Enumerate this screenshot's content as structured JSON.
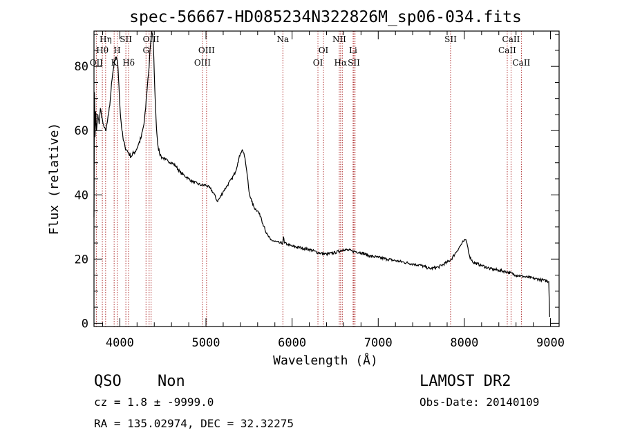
{
  "chart_data": {
    "type": "line",
    "title": "spec-56667-HD085234N322826M_sp06-034.fits",
    "xlabel": "Wavelength (Å)",
    "ylabel": "Flux (relative)",
    "xlim": [
      3700,
      9100
    ],
    "ylim": [
      -1,
      91
    ],
    "x_ticks": [
      4000,
      5000,
      6000,
      7000,
      8000,
      9000
    ],
    "y_ticks": [
      0,
      20,
      40,
      60,
      80
    ],
    "grid": false,
    "series": [
      {
        "x": [
          3700,
          3705,
          3712,
          3720,
          3730,
          3745,
          3760,
          3775,
          3790,
          3800,
          3810,
          3820,
          3835,
          3850,
          3870,
          3890,
          3910,
          3930,
          3945,
          3960,
          3970,
          3980,
          3990,
          4000,
          4010,
          4025,
          4040,
          4060,
          4080,
          4100,
          4130,
          4160,
          4190,
          4220,
          4250,
          4280,
          4300,
          4320,
          4340,
          4350,
          4360,
          4370,
          4380,
          4390,
          4400,
          4410,
          4420,
          4430,
          4445,
          4460,
          4480,
          4500,
          4530,
          4560,
          4600,
          4650,
          4700,
          4750,
          4800,
          4850,
          4900,
          4950,
          5000,
          5050,
          5100,
          5130,
          5160,
          5200,
          5250,
          5300,
          5340,
          5370,
          5400,
          5420,
          5440,
          5460,
          5480,
          5500,
          5530,
          5560,
          5600,
          5640,
          5660,
          5680,
          5700,
          5750,
          5800,
          5850,
          5890,
          5900,
          5910,
          5950,
          6000,
          6100,
          6200,
          6300,
          6400,
          6500,
          6600,
          6700,
          6800,
          6900,
          7000,
          7100,
          7200,
          7300,
          7400,
          7500,
          7600,
          7700,
          7800,
          7850,
          7900,
          7950,
          7990,
          8010,
          8030,
          8060,
          8100,
          8200,
          8300,
          8400,
          8500,
          8600,
          8700,
          8800,
          8900,
          8980,
          8990
        ],
        "y": [
          33,
          72,
          58,
          66,
          60,
          65,
          62,
          67,
          64,
          63,
          62,
          61,
          60,
          62,
          65,
          70,
          76,
          80,
          82,
          83,
          82,
          79,
          74,
          68,
          64,
          60,
          57,
          55,
          54,
          53,
          52,
          53,
          54,
          56,
          58,
          62,
          67,
          74,
          80,
          85,
          88,
          91,
          90,
          86,
          78,
          70,
          64,
          59,
          55,
          53,
          52,
          51.5,
          51,
          50.5,
          50,
          49,
          47,
          46,
          45,
          44,
          43.5,
          43,
          43,
          42,
          40,
          38,
          39,
          41,
          43,
          45,
          47,
          50,
          53,
          54,
          53,
          50,
          46,
          41,
          38,
          36,
          35,
          33,
          31,
          30,
          28,
          26,
          25.5,
          25,
          25,
          27,
          25,
          24.5,
          24,
          23.5,
          23,
          22,
          21.5,
          22,
          23,
          22.5,
          22,
          21,
          20.5,
          20,
          19.5,
          19,
          18.5,
          18,
          17,
          17.5,
          19,
          20,
          22,
          24,
          25.5,
          26,
          25,
          21,
          19,
          18,
          17,
          16.5,
          16,
          15,
          14.5,
          14,
          13.5,
          13,
          2
        ]
      }
    ],
    "lines": [
      {
        "label": "OII",
        "x": 3727,
        "row": 3
      },
      {
        "label": "Hθ",
        "x": 3797,
        "row": 2
      },
      {
        "label": "Hη",
        "x": 3835,
        "row": 1
      },
      {
        "label": "K",
        "x": 3934,
        "row": 3
      },
      {
        "label": "H",
        "x": 3969,
        "row": 2
      },
      {
        "label": "SII",
        "x": 4070,
        "row": 1
      },
      {
        "label": "Hδ",
        "x": 4102,
        "row": 3
      },
      {
        "label": "G",
        "x": 4304,
        "row": 2
      },
      {
        "label": "OIII",
        "x": 4363,
        "row": 1
      },
      {
        "label": "",
        "x": 4340,
        "row": 0
      },
      {
        "label": "OIII",
        "x": 4959,
        "row": 3
      },
      {
        "label": "OIII",
        "x": 5007,
        "row": 2
      },
      {
        "label": "Na",
        "x": 5893,
        "row": 1
      },
      {
        "label": "OI",
        "x": 6300,
        "row": 3
      },
      {
        "label": "OI",
        "x": 6364,
        "row": 2
      },
      {
        "label": "NII",
        "x": 6548,
        "row": 1
      },
      {
        "label": "Hα",
        "x": 6563,
        "row": 3
      },
      {
        "label": "NII",
        "x": 6583,
        "row": 0
      },
      {
        "label": "Li",
        "x": 6708,
        "row": 2
      },
      {
        "label": "SII",
        "x": 6717,
        "row": 3
      },
      {
        "label": "SII",
        "x": 6731,
        "row": 0
      },
      {
        "label": "SII",
        "x": 7840,
        "row": 1
      },
      {
        "label": "CaII",
        "x": 8498,
        "row": 2
      },
      {
        "label": "CaII",
        "x": 8542,
        "row": 1
      },
      {
        "label": "CaII",
        "x": 8662,
        "row": 3
      }
    ]
  },
  "footer": {
    "class_label": "QSO",
    "subclass_label": "Non",
    "cz_text": "cz = 1.8 ± -9999.0",
    "radec_text": "RA = 135.02974, DEC =  32.32275",
    "survey_label": "LAMOST DR2",
    "obs_date_text": "Obs-Date: 20140109"
  },
  "colors": {
    "spectrum": "#000000",
    "line_markers": "#b03030",
    "axes": "#000000"
  }
}
